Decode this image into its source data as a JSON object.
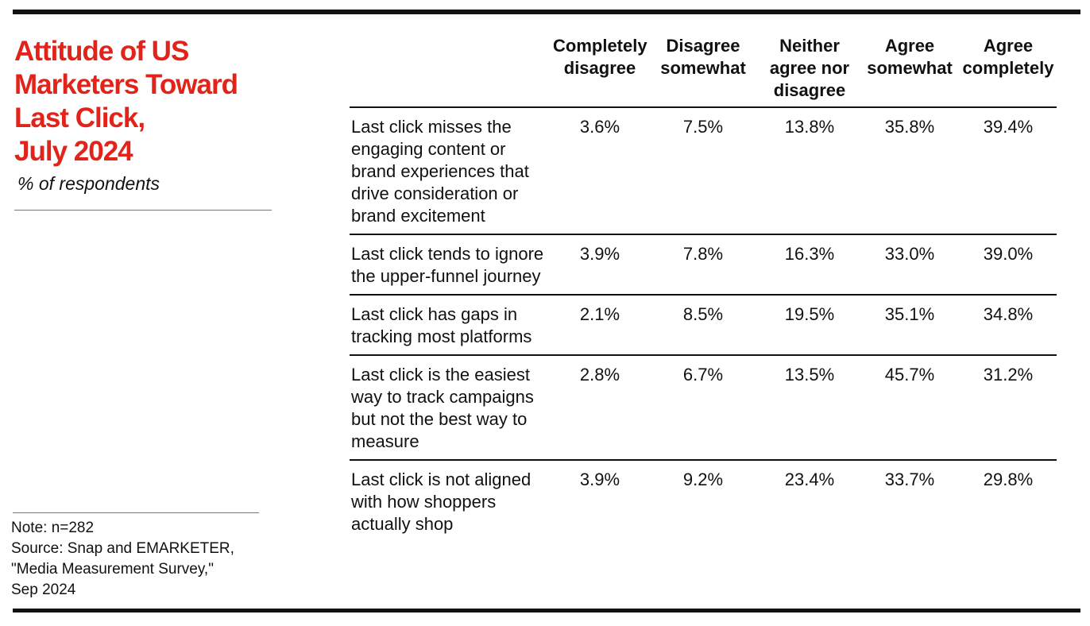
{
  "chart_data": {
    "type": "table",
    "title": "Attitude of US Marketers Toward Last Click, July 2024",
    "title_lines": [
      "Attitude of US",
      "Marketers Toward",
      "Last Click,",
      "July 2024"
    ],
    "subtitle": "% of respondents",
    "columns": [
      "Completely disagree",
      "Disagree somewhat",
      "Neither agree nor disagree",
      "Agree somewhat",
      "Agree completely"
    ],
    "rows": [
      {
        "label": "Last click misses the engaging content or brand experiences that drive consideration or brand excitement",
        "values": [
          "3.6%",
          "7.5%",
          "13.8%",
          "35.8%",
          "39.4%"
        ]
      },
      {
        "label": "Last click tends to ignore the upper-funnel journey",
        "values": [
          "3.9%",
          "7.8%",
          "16.3%",
          "33.0%",
          "39.0%"
        ]
      },
      {
        "label": "Last click has gaps in tracking most platforms",
        "values": [
          "2.1%",
          "8.5%",
          "19.5%",
          "35.1%",
          "34.8%"
        ]
      },
      {
        "label": "Last click is the easiest way to track campaigns but not the best way to measure",
        "values": [
          "2.8%",
          "6.7%",
          "13.5%",
          "45.7%",
          "31.2%"
        ]
      },
      {
        "label": "Last click is not aligned with how shoppers actually shop",
        "values": [
          "3.9%",
          "9.2%",
          "23.4%",
          "33.7%",
          "29.8%"
        ]
      }
    ],
    "note": "Note: n=282",
    "source_lines": [
      "Source: Snap and EMARKETER,",
      "\"Media Measurement Survey,\"",
      "Sep 2024"
    ]
  },
  "colors": {
    "title": "#e2231a",
    "rules": "#111111"
  }
}
